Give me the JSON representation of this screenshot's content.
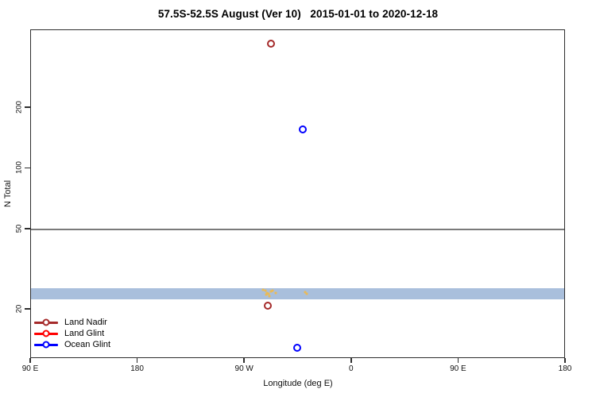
{
  "chart_data": {
    "type": "scatter",
    "title": "57.5S-52.5S August (Ver 10)   2015-01-01 to 2020-12-18",
    "xlabel": "Longitude (deg E)",
    "ylabel": "N Total",
    "x_axis": {
      "range_deg": [
        90,
        540
      ],
      "ticks": [
        {
          "pos": 90,
          "label": "90 E"
        },
        {
          "pos": 180,
          "label": "180"
        },
        {
          "pos": 270,
          "label": "90 W"
        },
        {
          "pos": 360,
          "label": "0"
        },
        {
          "pos": 450,
          "label": "90 E"
        },
        {
          "pos": 540,
          "label": "180"
        }
      ]
    },
    "y_axis": {
      "scale": "log",
      "range": [
        11,
        490
      ],
      "ticks": [
        {
          "value": 200,
          "label": "200"
        },
        {
          "value": 100,
          "label": "100"
        },
        {
          "value": 50,
          "label": "50"
        },
        {
          "value": 20,
          "label": "20"
        }
      ]
    },
    "series": [
      {
        "name": "Land Nadir",
        "color": "#A52A2A",
        "points": [
          {
            "lon": 292,
            "value": 417
          },
          {
            "lon": 289,
            "value": 21
          }
        ]
      },
      {
        "name": "Land Glint",
        "color": "#FF0000",
        "points": []
      },
      {
        "name": "Ocean Glint",
        "color": "#0000FF",
        "points": [
          {
            "lon": 319,
            "value": 157
          },
          {
            "lon": 314,
            "value": 13
          }
        ]
      }
    ],
    "reference_band": {
      "value_min": 22.4,
      "value_max": 25.5,
      "color": "#A9BFDC"
    },
    "reference_line": {
      "value": 50,
      "color": "#7a7a7a"
    },
    "small_gold_marks": {
      "color": "#EDB94E",
      "points": [
        {
          "lon": 285.5,
          "value": 25.2
        },
        {
          "lon": 287.0,
          "value": 24.8
        },
        {
          "lon": 288.5,
          "value": 24.3
        },
        {
          "lon": 290.0,
          "value": 24.0
        },
        {
          "lon": 292.0,
          "value": 24.6
        },
        {
          "lon": 288.0,
          "value": 23.7
        },
        {
          "lon": 290.5,
          "value": 23.3
        },
        {
          "lon": 293.5,
          "value": 24.9
        },
        {
          "lon": 296.0,
          "value": 24.2
        },
        {
          "lon": 320.5,
          "value": 24.4
        },
        {
          "lon": 322.0,
          "value": 23.9
        }
      ]
    },
    "legend": {
      "position": "bottom-left",
      "items": [
        {
          "label": "Land Nadir",
          "color": "#A52A2A"
        },
        {
          "label": "Land Glint",
          "color": "#FF0000"
        },
        {
          "label": "Ocean Glint",
          "color": "#0000FF"
        }
      ]
    }
  }
}
